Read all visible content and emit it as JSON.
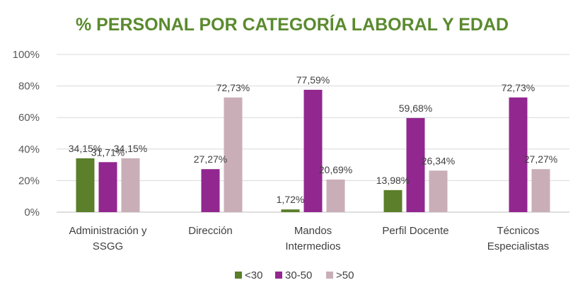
{
  "chart_data": {
    "type": "bar",
    "title": "% PERSONAL POR CATEGORÍA LABORAL Y EDAD",
    "title_color": "#5a8a2e",
    "categories": [
      [
        "Administración y",
        "SSGG"
      ],
      [
        "Dirección"
      ],
      [
        "Mandos",
        "Intermedios"
      ],
      [
        "Perfil Docente"
      ],
      [
        "Técnicos",
        "Especialistas"
      ]
    ],
    "series": [
      {
        "name": "<30",
        "color": "#5b7f2a",
        "values": [
          34.15,
          null,
          1.72,
          13.98,
          null
        ],
        "labels": [
          "34,15%",
          "",
          "1,72%",
          "13,98%",
          ""
        ]
      },
      {
        "name": "30-50",
        "color": "#92278f",
        "values": [
          31.71,
          27.27,
          77.59,
          59.68,
          72.73
        ],
        "labels": [
          "31,71%",
          "27,27%",
          "77,59%",
          "59,68%",
          "72,73%"
        ]
      },
      {
        "name": ">50",
        "color": "#c9aeb8",
        "values": [
          34.15,
          72.73,
          20.69,
          26.34,
          27.27
        ],
        "labels": [
          "34,15%",
          "72,73%",
          "20,69%",
          "26,34%",
          "27,27%"
        ]
      }
    ],
    "y_ticks": [
      "0%",
      "20%",
      "40%",
      "60%",
      "80%",
      "100%"
    ],
    "ylim": [
      0,
      100
    ],
    "grid": true,
    "legend_position": "bottom"
  }
}
